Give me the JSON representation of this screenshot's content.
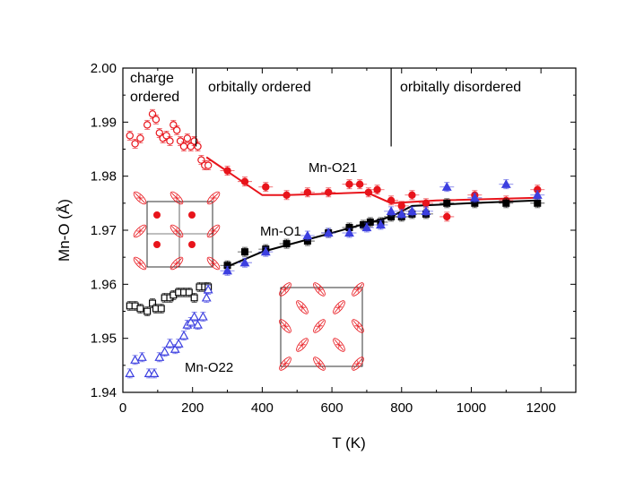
{
  "chart_data": {
    "type": "scatter",
    "xlabel": "T (K)",
    "ylabel": "Mn-O (Å)",
    "xlim": [
      0,
      1300
    ],
    "ylim": [
      1.94,
      2.0
    ],
    "xticks": [
      0,
      200,
      400,
      600,
      800,
      1000,
      1200
    ],
    "yticks": [
      1.94,
      1.95,
      1.96,
      1.97,
      1.98,
      1.99,
      2.0
    ],
    "xtick_labels": [
      "0",
      "200",
      "400",
      "600",
      "800",
      "1000",
      "1200"
    ],
    "ytick_labels": [
      "1.94",
      "1.95",
      "1.96",
      "1.97",
      "1.98",
      "1.99",
      "2.00"
    ],
    "region_dividers_x": [
      210,
      770
    ],
    "regions": [
      {
        "line1": "charge",
        "line2": "ordered"
      },
      {
        "line1": "orbitally ordered",
        "line2": ""
      },
      {
        "line1": "orbitally disordered",
        "line2": ""
      }
    ],
    "series": [
      {
        "name": "Mn-O21",
        "color": "#e8141b",
        "marker": "circle",
        "low_t": [
          [
            20,
            1.9875
          ],
          [
            35,
            1.986
          ],
          [
            50,
            1.987
          ],
          [
            70,
            1.9895
          ],
          [
            85,
            1.9915
          ],
          [
            95,
            1.9905
          ],
          [
            105,
            1.988
          ],
          [
            115,
            1.987
          ],
          [
            125,
            1.9875
          ],
          [
            135,
            1.9865
          ],
          [
            145,
            1.9895
          ],
          [
            155,
            1.9885
          ],
          [
            165,
            1.9865
          ],
          [
            175,
            1.9855
          ],
          [
            185,
            1.987
          ],
          [
            195,
            1.9855
          ],
          [
            205,
            1.9865
          ],
          [
            215,
            1.9855
          ],
          [
            225,
            1.983
          ],
          [
            235,
            1.982
          ],
          [
            245,
            1.982
          ]
        ],
        "high_t": [
          [
            300,
            1.981
          ],
          [
            350,
            1.979
          ],
          [
            410,
            1.978
          ],
          [
            470,
            1.9765
          ],
          [
            530,
            1.977
          ],
          [
            590,
            1.977
          ],
          [
            650,
            1.9785
          ],
          [
            680,
            1.9785
          ],
          [
            705,
            1.977
          ],
          [
            730,
            1.9775
          ],
          [
            770,
            1.9755
          ],
          [
            800,
            1.9745
          ],
          [
            830,
            1.9765
          ],
          [
            870,
            1.975
          ],
          [
            930,
            1.9725
          ],
          [
            1010,
            1.9765
          ],
          [
            1100,
            1.9755
          ],
          [
            1190,
            1.9775
          ]
        ],
        "fit_line": [
          [
            240,
            1.9835
          ],
          [
            400,
            1.9765
          ],
          [
            470,
            1.9765
          ],
          [
            700,
            1.977
          ],
          [
            770,
            1.975
          ],
          [
            900,
            1.9755
          ],
          [
            1190,
            1.976
          ]
        ]
      },
      {
        "name": "Mn-O1",
        "color": "#000000",
        "marker": "square",
        "low_t": [
          [
            20,
            1.956
          ],
          [
            35,
            1.956
          ],
          [
            50,
            1.9555
          ],
          [
            70,
            1.955
          ],
          [
            85,
            1.9565
          ],
          [
            95,
            1.9555
          ],
          [
            110,
            1.9555
          ],
          [
            120,
            1.9575
          ],
          [
            135,
            1.9575
          ],
          [
            145,
            1.958
          ],
          [
            160,
            1.9585
          ],
          [
            175,
            1.9585
          ],
          [
            190,
            1.9585
          ],
          [
            205,
            1.9575
          ],
          [
            220,
            1.9595
          ],
          [
            235,
            1.9595
          ],
          [
            245,
            1.9595
          ]
        ],
        "high_t": [
          [
            300,
            1.9635
          ],
          [
            350,
            1.966
          ],
          [
            410,
            1.9665
          ],
          [
            470,
            1.9675
          ],
          [
            530,
            1.968
          ],
          [
            590,
            1.9695
          ],
          [
            650,
            1.9705
          ],
          [
            690,
            1.971
          ],
          [
            710,
            1.9715
          ],
          [
            740,
            1.9715
          ],
          [
            770,
            1.9725
          ],
          [
            800,
            1.9725
          ],
          [
            830,
            1.973
          ],
          [
            870,
            1.973
          ],
          [
            930,
            1.975
          ],
          [
            1010,
            1.975
          ],
          [
            1100,
            1.975
          ],
          [
            1190,
            1.975
          ]
        ],
        "fit_line": [
          [
            290,
            1.963
          ],
          [
            400,
            1.966
          ],
          [
            600,
            1.9695
          ],
          [
            770,
            1.9725
          ],
          [
            830,
            1.9745
          ],
          [
            1000,
            1.975
          ],
          [
            1190,
            1.9755
          ]
        ]
      },
      {
        "name": "Mn-O22",
        "color": "#3c3fe0",
        "marker": "triangle",
        "low_t": [
          [
            20,
            1.9435
          ],
          [
            35,
            1.946
          ],
          [
            55,
            1.9465
          ],
          [
            75,
            1.9435
          ],
          [
            90,
            1.9435
          ],
          [
            105,
            1.9465
          ],
          [
            120,
            1.9475
          ],
          [
            135,
            1.949
          ],
          [
            150,
            1.948
          ],
          [
            160,
            1.949
          ],
          [
            175,
            1.9505
          ],
          [
            185,
            1.9525
          ],
          [
            195,
            1.953
          ],
          [
            205,
            1.954
          ],
          [
            215,
            1.9525
          ],
          [
            230,
            1.954
          ],
          [
            240,
            1.9575
          ],
          [
            245,
            1.959
          ]
        ],
        "high_t": [
          [
            300,
            1.9625
          ],
          [
            350,
            1.964
          ],
          [
            410,
            1.966
          ],
          [
            530,
            1.969
          ],
          [
            590,
            1.9695
          ],
          [
            650,
            1.9695
          ],
          [
            700,
            1.9705
          ],
          [
            740,
            1.971
          ],
          [
            770,
            1.9735
          ],
          [
            800,
            1.973
          ],
          [
            830,
            1.9735
          ],
          [
            870,
            1.9735
          ],
          [
            930,
            1.978
          ],
          [
            1010,
            1.976
          ],
          [
            1100,
            1.9785
          ],
          [
            1190,
            1.9765
          ]
        ]
      }
    ],
    "annotations": [
      "Mn-O21",
      "Mn-O1",
      "Mn-O22"
    ]
  }
}
